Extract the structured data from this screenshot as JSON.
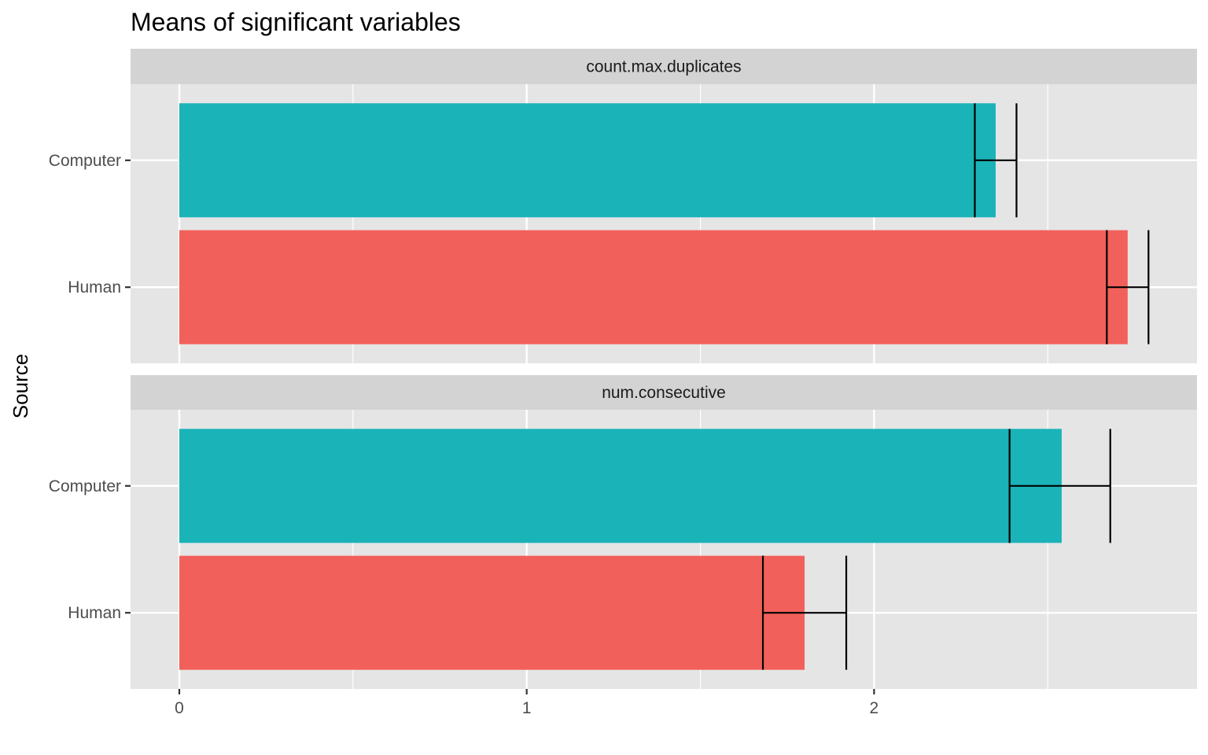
{
  "chart_data": {
    "type": "bar",
    "orientation": "horizontal",
    "title": "Means of significant variables",
    "ylabel": "Source",
    "xlabel": "",
    "categories": [
      "Computer",
      "Human"
    ],
    "xlim": [
      -0.14,
      2.95
    ],
    "x_ticks": [
      0,
      1,
      2
    ],
    "grid": true,
    "legend": "none",
    "colors": {
      "Computer": "#19b3b8",
      "Human": "#f2605b",
      "error_bar": "#000000",
      "panel_bg": "#e5e5e5",
      "strip_bg": "#d3d3d3",
      "grid": "#ffffff"
    },
    "panels": [
      {
        "label": "count.max.duplicates",
        "bars": [
          {
            "category": "Computer",
            "value": 2.35,
            "err_low": 2.29,
            "err_high": 2.41
          },
          {
            "category": "Human",
            "value": 2.73,
            "err_low": 2.67,
            "err_high": 2.79
          }
        ]
      },
      {
        "label": "num.consecutive",
        "bars": [
          {
            "category": "Computer",
            "value": 2.54,
            "err_low": 2.39,
            "err_high": 2.68
          },
          {
            "category": "Human",
            "value": 1.8,
            "err_low": 1.68,
            "err_high": 1.92
          }
        ]
      }
    ]
  }
}
